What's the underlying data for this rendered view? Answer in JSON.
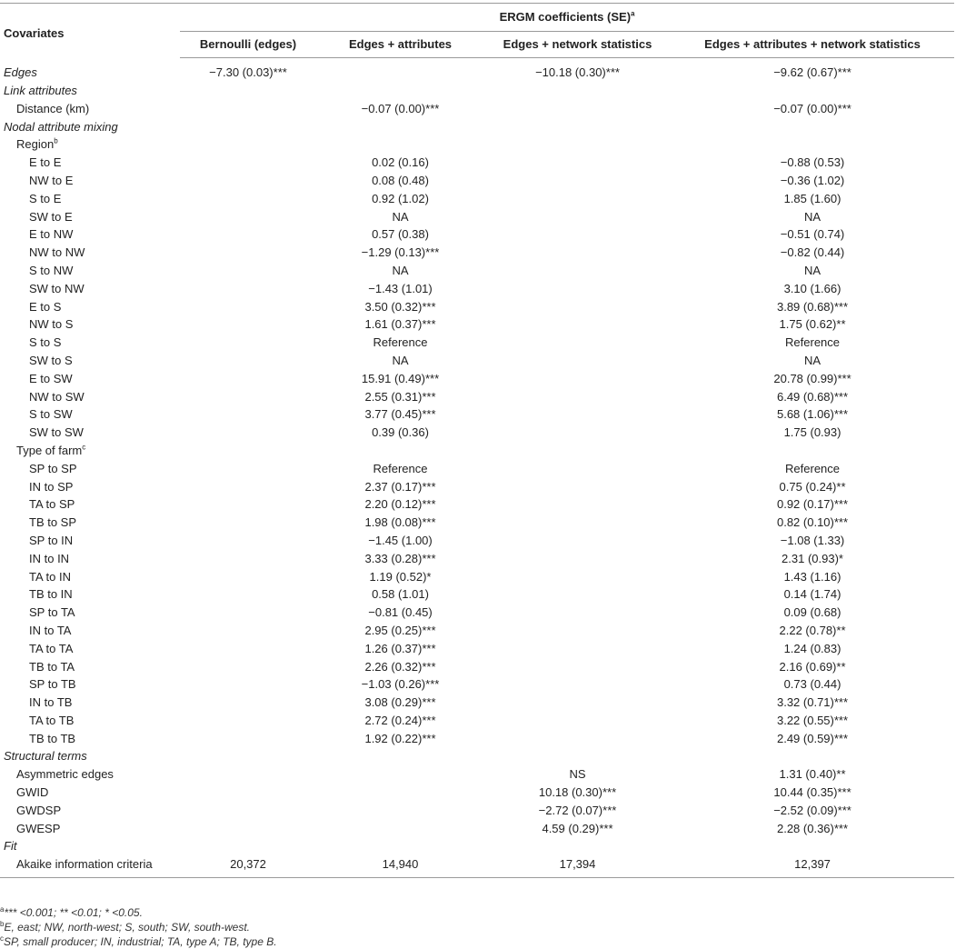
{
  "header": {
    "covariates": "Covariates",
    "ergm": "ERGM coefficients (SE)",
    "ergm_sup": "a",
    "columns": [
      "Bernoulli (edges)",
      "Edges + attributes",
      "Edges + network statistics",
      "Edges + attributes + network statistics"
    ]
  },
  "rows": [
    {
      "label": "Edges",
      "kind": "section",
      "vals": [
        "−7.30 (0.03)***",
        "",
        "−10.18 (0.30)***",
        "−9.62 (0.67)***"
      ]
    },
    {
      "label": "Link attributes",
      "kind": "section",
      "vals": [
        "",
        "",
        "",
        ""
      ]
    },
    {
      "label": "Distance (km)",
      "kind": "l1",
      "vals": [
        "",
        "−0.07 (0.00)***",
        "",
        "−0.07 (0.00)***"
      ]
    },
    {
      "label": "Nodal attribute mixing",
      "kind": "section",
      "vals": [
        "",
        "",
        "",
        ""
      ]
    },
    {
      "label": "Region",
      "sup": "b",
      "kind": "l1",
      "vals": [
        "",
        "",
        "",
        ""
      ]
    },
    {
      "label": "E to E",
      "kind": "l2",
      "vals": [
        "",
        "0.02 (0.16)",
        "",
        "−0.88 (0.53)"
      ]
    },
    {
      "label": "NW to E",
      "kind": "l2",
      "vals": [
        "",
        "0.08 (0.48)",
        "",
        "−0.36 (1.02)"
      ]
    },
    {
      "label": "S to E",
      "kind": "l2",
      "vals": [
        "",
        "0.92 (1.02)",
        "",
        "1.85 (1.60)"
      ]
    },
    {
      "label": "SW to E",
      "kind": "l2",
      "vals": [
        "",
        "NA",
        "",
        "NA"
      ]
    },
    {
      "label": "E to NW",
      "kind": "l2",
      "vals": [
        "",
        "0.57 (0.38)",
        "",
        "−0.51 (0.74)"
      ]
    },
    {
      "label": "NW to NW",
      "kind": "l2",
      "vals": [
        "",
        "−1.29 (0.13)***",
        "",
        "−0.82 (0.44)"
      ]
    },
    {
      "label": "S to NW",
      "kind": "l2",
      "vals": [
        "",
        "NA",
        "",
        "NA"
      ]
    },
    {
      "label": "SW to NW",
      "kind": "l2",
      "vals": [
        "",
        "−1.43 (1.01)",
        "",
        "3.10 (1.66)"
      ]
    },
    {
      "label": "E to S",
      "kind": "l2",
      "vals": [
        "",
        "3.50 (0.32)***",
        "",
        "3.89 (0.68)***"
      ]
    },
    {
      "label": "NW to S",
      "kind": "l2",
      "vals": [
        "",
        "1.61 (0.37)***",
        "",
        "1.75 (0.62)**"
      ]
    },
    {
      "label": "S to S",
      "kind": "l2",
      "vals": [
        "",
        "Reference",
        "",
        "Reference"
      ]
    },
    {
      "label": "SW to S",
      "kind": "l2",
      "vals": [
        "",
        "NA",
        "",
        "NA"
      ]
    },
    {
      "label": "E to SW",
      "kind": "l2",
      "vals": [
        "",
        "15.91 (0.49)***",
        "",
        "20.78 (0.99)***"
      ]
    },
    {
      "label": "NW to SW",
      "kind": "l2",
      "vals": [
        "",
        "2.55 (0.31)***",
        "",
        "6.49 (0.68)***"
      ]
    },
    {
      "label": "S to SW",
      "kind": "l2",
      "vals": [
        "",
        "3.77 (0.45)***",
        "",
        "5.68 (1.06)***"
      ]
    },
    {
      "label": "SW to SW",
      "kind": "l2",
      "vals": [
        "",
        "0.39 (0.36)",
        "",
        "1.75 (0.93)"
      ]
    },
    {
      "label": "Type of farm",
      "sup": "c",
      "kind": "l1",
      "vals": [
        "",
        "",
        "",
        ""
      ]
    },
    {
      "label": "SP to SP",
      "kind": "l2",
      "vals": [
        "",
        "Reference",
        "",
        "Reference"
      ]
    },
    {
      "label": "IN to SP",
      "kind": "l2",
      "vals": [
        "",
        "2.37 (0.17)***",
        "",
        "0.75 (0.24)**"
      ]
    },
    {
      "label": "TA to SP",
      "kind": "l2",
      "vals": [
        "",
        "2.20 (0.12)***",
        "",
        "0.92 (0.17)***"
      ]
    },
    {
      "label": "TB to SP",
      "kind": "l2",
      "vals": [
        "",
        "1.98 (0.08)***",
        "",
        "0.82 (0.10)***"
      ]
    },
    {
      "label": "SP to IN",
      "kind": "l2",
      "vals": [
        "",
        "−1.45 (1.00)",
        "",
        "−1.08 (1.33)"
      ]
    },
    {
      "label": "IN to IN",
      "kind": "l2",
      "vals": [
        "",
        "3.33 (0.28)***",
        "",
        "2.31 (0.93)*"
      ]
    },
    {
      "label": "TA to IN",
      "kind": "l2",
      "vals": [
        "",
        "1.19 (0.52)*",
        "",
        "1.43 (1.16)"
      ]
    },
    {
      "label": "TB to IN",
      "kind": "l2",
      "vals": [
        "",
        "0.58 (1.01)",
        "",
        "0.14 (1.74)"
      ]
    },
    {
      "label": "SP to TA",
      "kind": "l2",
      "vals": [
        "",
        "−0.81 (0.45)",
        "",
        "0.09 (0.68)"
      ]
    },
    {
      "label": "IN to TA",
      "kind": "l2",
      "vals": [
        "",
        "2.95 (0.25)***",
        "",
        "2.22 (0.78)**"
      ]
    },
    {
      "label": "TA to TA",
      "kind": "l2",
      "vals": [
        "",
        "1.26 (0.37)***",
        "",
        "1.24 (0.83)"
      ]
    },
    {
      "label": "TB to TA",
      "kind": "l2",
      "vals": [
        "",
        "2.26 (0.32)***",
        "",
        "2.16 (0.69)**"
      ]
    },
    {
      "label": "SP to TB",
      "kind": "l2",
      "vals": [
        "",
        "−1.03 (0.26)***",
        "",
        "0.73 (0.44)"
      ]
    },
    {
      "label": "IN to TB",
      "kind": "l2",
      "vals": [
        "",
        "3.08 (0.29)***",
        "",
        "3.32 (0.71)***"
      ]
    },
    {
      "label": "TA to TB",
      "kind": "l2",
      "vals": [
        "",
        "2.72 (0.24)***",
        "",
        "3.22 (0.55)***"
      ]
    },
    {
      "label": "TB to TB",
      "kind": "l2",
      "vals": [
        "",
        "1.92 (0.22)***",
        "",
        "2.49 (0.59)***"
      ]
    },
    {
      "label": "Structural terms",
      "kind": "section",
      "vals": [
        "",
        "",
        "",
        ""
      ]
    },
    {
      "label": "Asymmetric edges",
      "kind": "l1",
      "vals": [
        "",
        "",
        "NS",
        "1.31 (0.40)**"
      ]
    },
    {
      "label": "GWID",
      "kind": "l1",
      "vals": [
        "",
        "",
        "10.18 (0.30)***",
        "10.44 (0.35)***"
      ]
    },
    {
      "label": "GWDSP",
      "kind": "l1",
      "vals": [
        "",
        "",
        "−2.72 (0.07)***",
        "−2.52 (0.09)***"
      ]
    },
    {
      "label": "GWESP",
      "kind": "l1",
      "vals": [
        "",
        "",
        "4.59 (0.29)***",
        "2.28 (0.36)***"
      ]
    },
    {
      "label": "Fit",
      "kind": "section",
      "vals": [
        "",
        "",
        "",
        ""
      ]
    },
    {
      "label": "Akaike information criteria",
      "kind": "l1",
      "vals": [
        "20,372",
        "14,940",
        "17,394",
        "12,397"
      ]
    }
  ],
  "footnotes": [
    {
      "sup": "a",
      "text": "*** <0.001; ** <0.01; * <0.05."
    },
    {
      "sup": "b",
      "text": "E, east; NW, north-west; S, south; SW, south-west."
    },
    {
      "sup": "c",
      "text": "SP, small producer; IN, industrial; TA, type A; TB, type B."
    }
  ]
}
